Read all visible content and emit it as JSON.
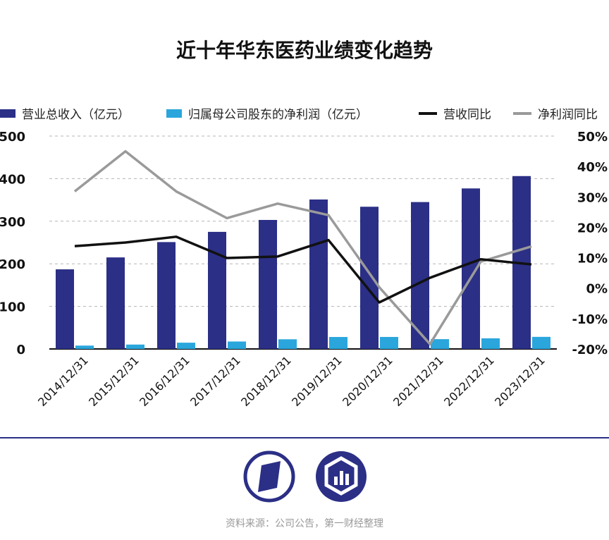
{
  "title": "近十年华东医药业绩变化趋势",
  "legend": {
    "revenue": "营业总收入（亿元）",
    "net_profit": "归属母公司股东的净利润（亿元）",
    "revenue_yoy": "营收同比",
    "profit_yoy": "净利润同比"
  },
  "colors": {
    "revenue": "#2b2f86",
    "net_profit": "#2aa6dc",
    "revenue_yoy": "#111111",
    "profit_yoy": "#9a9a9a",
    "divider": "#2b2f86"
  },
  "source": "资料来源：公司公告，第一财经整理",
  "chart_data": {
    "type": "bar",
    "title": "近十年华东医药业绩变化趋势",
    "categories": [
      "2014/12/31",
      "2015/12/31",
      "2016/12/31",
      "2017/12/31",
      "2018/12/31",
      "2019/12/31",
      "2020/12/31",
      "2021/12/31",
      "2022/12/31",
      "2023/12/31"
    ],
    "series": [
      {
        "name": "营业总收入（亿元）",
        "type": "bar",
        "axis": "left",
        "values": [
          187,
          215,
          251,
          275,
          303,
          351,
          334,
          345,
          377,
          406
        ]
      },
      {
        "name": "归属母公司股东的净利润（亿元）",
        "type": "bar",
        "axis": "left",
        "values": [
          7.9,
          10.3,
          14.7,
          17.5,
          22.7,
          28.1,
          28.2,
          23.0,
          25.0,
          28.4
        ]
      },
      {
        "name": "营收同比",
        "type": "line",
        "axis": "right",
        "values": [
          13.8,
          15.0,
          16.9,
          9.9,
          10.4,
          15.8,
          -4.7,
          3.4,
          9.5,
          7.8
        ]
      },
      {
        "name": "净利润同比",
        "type": "line",
        "axis": "right",
        "values": [
          31.8,
          45.0,
          31.8,
          23.0,
          27.8,
          24.0,
          0.3,
          -18.4,
          8.7,
          13.7
        ]
      }
    ],
    "left_axis": {
      "ylim": [
        0,
        500
      ],
      "ticks": [
        "0",
        "100",
        "200",
        "300",
        "400",
        "500"
      ]
    },
    "right_axis": {
      "ylim": [
        -20,
        50
      ],
      "ticks": [
        "-20%",
        "-10%",
        "0%",
        "10%",
        "20%",
        "30%",
        "40%",
        "50%"
      ]
    },
    "grid": "horizontal dashed",
    "legend_position": "top"
  }
}
